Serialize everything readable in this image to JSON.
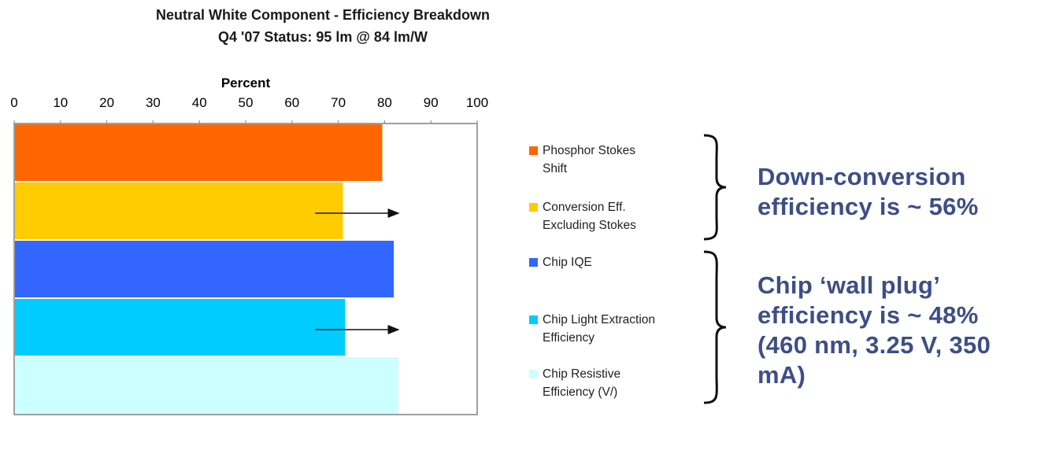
{
  "chart_data": {
    "type": "bar",
    "orientation": "horizontal",
    "title": "Neutral White Component - Efficiency Breakdown",
    "subtitle": "Q4 '07 Status: 95 lm @ 84 lm/W",
    "xlabel": "Percent",
    "ylabel": "",
    "xlim": [
      0,
      100
    ],
    "x_ticks": [
      0,
      10,
      20,
      30,
      40,
      50,
      60,
      70,
      80,
      90,
      100
    ],
    "axis_position": "top",
    "grid": false,
    "categories": [
      "Phosphor Stokes Shift",
      "Conversion Eff. Excluding Stokes",
      "Chip IQE",
      "Chip Light Extraction Efficiency",
      "Chip Resistive Efficiency (V/)"
    ],
    "values": [
      79.5,
      71,
      82,
      71.5,
      83
    ],
    "colors": [
      "#ff6600",
      "#ffcc00",
      "#3366ff",
      "#00ccff",
      "#ccffff"
    ],
    "arrows": [
      {
        "bar_index": 1,
        "from": 65,
        "to": 83
      },
      {
        "bar_index": 3,
        "from": 65,
        "to": 83
      }
    ],
    "legend_position": "right"
  },
  "legend": [
    {
      "label": "Phosphor Stokes\nShift",
      "color": "#ff6600"
    },
    {
      "label": "Conversion Eff.\nExcluding Stokes",
      "color": "#ffcc00"
    },
    {
      "label": "Chip IQE",
      "color": "#3366ff"
    },
    {
      "label": "Chip Light Extraction\nEfficiency",
      "color": "#00ccff"
    },
    {
      "label": "Chip Resistive\nEfficiency (V/)",
      "color": "#ccffff"
    }
  ],
  "annotations": {
    "down_conversion": "Down-conversion\nefficiency is ~ 56%",
    "wall_plug": "Chip ‘wall plug’\nefficiency is ~ 48%\n(460 nm, 3.25 V, 350\nmA)"
  },
  "colors": {
    "annotation": "#3d4e87"
  }
}
